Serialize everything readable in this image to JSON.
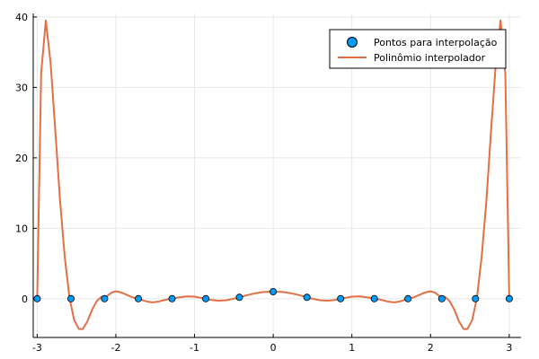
{
  "chart_data": {
    "type": "line",
    "title": "",
    "xlabel": "",
    "ylabel": "",
    "xlim": [
      -3.05,
      3.15
    ],
    "ylim": [
      -5.5,
      40.5
    ],
    "grid": true,
    "legend_position": "top-right",
    "x_ticks": [
      {
        "value": -3,
        "label": "-3"
      },
      {
        "value": -2,
        "label": "-2"
      },
      {
        "value": -1,
        "label": "-1"
      },
      {
        "value": 0,
        "label": "0"
      },
      {
        "value": 1,
        "label": "1"
      },
      {
        "value": 2,
        "label": "2"
      },
      {
        "value": 3,
        "label": "3"
      }
    ],
    "y_ticks": [
      {
        "value": 0,
        "label": "0"
      },
      {
        "value": 10,
        "label": "10"
      },
      {
        "value": 20,
        "label": "20"
      },
      {
        "value": 30,
        "label": "30"
      },
      {
        "value": 40,
        "label": "40"
      }
    ],
    "series": [
      {
        "name": "Pontos para interpolação",
        "kind": "scatter",
        "color": "#009af9",
        "x": [
          -3.0,
          -2.571,
          -2.143,
          -1.714,
          -1.286,
          -0.857,
          -0.429,
          0.0,
          0.429,
          0.857,
          1.286,
          1.714,
          2.143,
          2.571,
          3.0
        ],
        "y": [
          0.0,
          0.0,
          0.0,
          0.0,
          0.0,
          0.0,
          0.2,
          1.0,
          0.2,
          0.0,
          0.0,
          0.0,
          0.0,
          0.0,
          0.0
        ]
      },
      {
        "name": "Polinômio interpolador",
        "kind": "line",
        "color": "#e26f46",
        "x": [
          -3.0,
          -2.95,
          -2.89,
          -2.83,
          -2.77,
          -2.71,
          -2.65,
          -2.59,
          -2.53,
          -2.47,
          -2.42,
          -2.36,
          -2.3,
          -2.24,
          -2.18,
          -2.14,
          -2.1,
          -2.05,
          -2.0,
          -1.95,
          -1.9,
          -1.85,
          -1.8,
          -1.75,
          -1.71,
          -1.65,
          -1.6,
          -1.55,
          -1.5,
          -1.45,
          -1.4,
          -1.35,
          -1.29,
          -1.2,
          -1.1,
          -1.0,
          -0.93,
          -0.86,
          -0.78,
          -0.7,
          -0.6,
          -0.5,
          -0.43,
          -0.35,
          -0.25,
          -0.15,
          -0.08,
          0.0,
          0.08,
          0.15,
          0.25,
          0.35,
          0.43,
          0.5,
          0.6,
          0.7,
          0.78,
          0.86,
          0.93,
          1.0,
          1.1,
          1.2,
          1.29,
          1.35,
          1.4,
          1.45,
          1.5,
          1.55,
          1.6,
          1.65,
          1.71,
          1.75,
          1.8,
          1.85,
          1.9,
          1.95,
          2.0,
          2.05,
          2.1,
          2.14,
          2.18,
          2.24,
          2.3,
          2.36,
          2.42,
          2.47,
          2.53,
          2.59,
          2.65,
          2.71,
          2.77,
          2.83,
          2.89,
          2.95,
          3.0
        ],
        "y": [
          0.0,
          32.0,
          39.5,
          33.5,
          24.0,
          14.0,
          6.0,
          0.2,
          -3.0,
          -4.3,
          -4.3,
          -3.2,
          -1.5,
          -0.3,
          0.3,
          0.0,
          0.5,
          0.9,
          1.05,
          0.95,
          0.75,
          0.5,
          0.25,
          0.08,
          0.0,
          -0.25,
          -0.42,
          -0.5,
          -0.48,
          -0.38,
          -0.24,
          -0.1,
          0.0,
          0.18,
          0.32,
          0.3,
          0.15,
          0.0,
          -0.18,
          -0.28,
          -0.22,
          0.0,
          0.2,
          0.45,
          0.72,
          0.92,
          0.98,
          1.0,
          0.98,
          0.92,
          0.72,
          0.45,
          0.2,
          0.0,
          -0.22,
          -0.28,
          -0.18,
          0.0,
          0.15,
          0.3,
          0.32,
          0.18,
          0.0,
          -0.1,
          -0.24,
          -0.38,
          -0.48,
          -0.5,
          -0.42,
          -0.25,
          0.0,
          0.08,
          0.25,
          0.5,
          0.75,
          0.95,
          1.05,
          0.9,
          0.5,
          0.0,
          0.3,
          -0.3,
          -1.5,
          -3.2,
          -4.3,
          -4.3,
          -3.0,
          0.2,
          6.0,
          14.0,
          24.0,
          33.5,
          39.5,
          32.0,
          0.0
        ]
      }
    ]
  }
}
